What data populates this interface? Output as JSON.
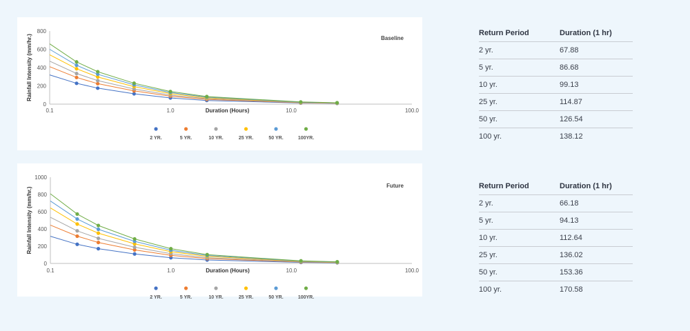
{
  "chart_data": [
    {
      "type": "line",
      "tag": "Baseline",
      "xlabel": "Duration (Hours)",
      "ylabel": "Rainfall Intensity (mm/hr.)",
      "xscale": "log",
      "xlim": [
        0.1,
        100
      ],
      "ylim": [
        0,
        800
      ],
      "x_ticks": [
        "0.1",
        "1.0",
        "10.0",
        "100.0"
      ],
      "y_ticks": [
        "0",
        "200",
        "400",
        "600",
        "800"
      ],
      "legend_position": "bottom",
      "marker_x": [
        0.167,
        0.25,
        0.5,
        1,
        2,
        12,
        24
      ],
      "series": [
        {
          "name": "2 YR.",
          "color": "#4472c4",
          "start": 320,
          "values": [
            228,
            175,
            113,
            68,
            40,
            12,
            8
          ]
        },
        {
          "name": "5 YR.",
          "color": "#ed7d31",
          "start": 410,
          "values": [
            292,
            224,
            145,
            87,
            52,
            15,
            10
          ]
        },
        {
          "name": "10 YR.",
          "color": "#a5a5a5",
          "start": 470,
          "values": [
            335,
            257,
            166,
            99,
            60,
            18,
            11
          ]
        },
        {
          "name": "25 YR.",
          "color": "#ffc000",
          "start": 540,
          "values": [
            387,
            297,
            192,
            115,
            69,
            20,
            13
          ]
        },
        {
          "name": "50 YR.",
          "color": "#5b9bd5",
          "start": 600,
          "values": [
            425,
            327,
            211,
            127,
            76,
            22,
            14
          ]
        },
        {
          "name": "100YR.",
          "color": "#70ad47",
          "start": 660,
          "values": [
            462,
            355,
            229,
            138,
            83,
            24,
            15
          ]
        }
      ]
    },
    {
      "type": "line",
      "tag": "Future",
      "xlabel": "Duration (Hours)",
      "ylabel": "Rainfall Intensity (mm/hr.)",
      "xscale": "log",
      "xlim": [
        0.1,
        100
      ],
      "ylim": [
        0,
        1000
      ],
      "x_ticks": [
        "0.1",
        "1.0",
        "10.0",
        "100.0"
      ],
      "y_ticks": [
        "0",
        "200",
        "400",
        "600",
        "800",
        "1000"
      ],
      "legend_position": "bottom",
      "marker_x": [
        0.167,
        0.25,
        0.5,
        1,
        2,
        12,
        24
      ],
      "series": [
        {
          "name": "2 YR.",
          "color": "#4472c4",
          "start": 315,
          "values": [
            222,
            171,
            110,
            66,
            40,
            12,
            8
          ]
        },
        {
          "name": "5 YR.",
          "color": "#ed7d31",
          "start": 445,
          "values": [
            316,
            243,
            157,
            94,
            56,
            17,
            11
          ]
        },
        {
          "name": "10 YR.",
          "color": "#a5a5a5",
          "start": 535,
          "values": [
            378,
            291,
            188,
            113,
            67,
            20,
            13
          ]
        },
        {
          "name": "25 YR.",
          "color": "#ffc000",
          "start": 645,
          "values": [
            457,
            351,
            227,
            136,
            82,
            24,
            15
          ]
        },
        {
          "name": "50 YR.",
          "color": "#5b9bd5",
          "start": 725,
          "values": [
            515,
            396,
            256,
            153,
            92,
            27,
            17
          ]
        },
        {
          "name": "100YR.",
          "color": "#70ad47",
          "start": 808,
          "values": [
            573,
            440,
            284,
            171,
            102,
            30,
            19
          ]
        }
      ]
    }
  ],
  "tables": [
    {
      "headers": [
        "Return Period",
        "Duration (1 hr)"
      ],
      "rows": [
        [
          "2 yr.",
          "67.88"
        ],
        [
          "5 yr.",
          "86.68"
        ],
        [
          "10 yr.",
          "99.13"
        ],
        [
          "25 yr.",
          "114.87"
        ],
        [
          "50 yr.",
          "126.54"
        ],
        [
          "100 yr.",
          "138.12"
        ]
      ]
    },
    {
      "headers": [
        "Return Period",
        "Duration (1 hr)"
      ],
      "rows": [
        [
          "2 yr.",
          "66.18"
        ],
        [
          "5 yr.",
          "94.13"
        ],
        [
          "10 yr.",
          "112.64"
        ],
        [
          "25 yr.",
          "136.02"
        ],
        [
          "50 yr.",
          "153.36"
        ],
        [
          "100 yr.",
          "170.58"
        ]
      ]
    }
  ]
}
